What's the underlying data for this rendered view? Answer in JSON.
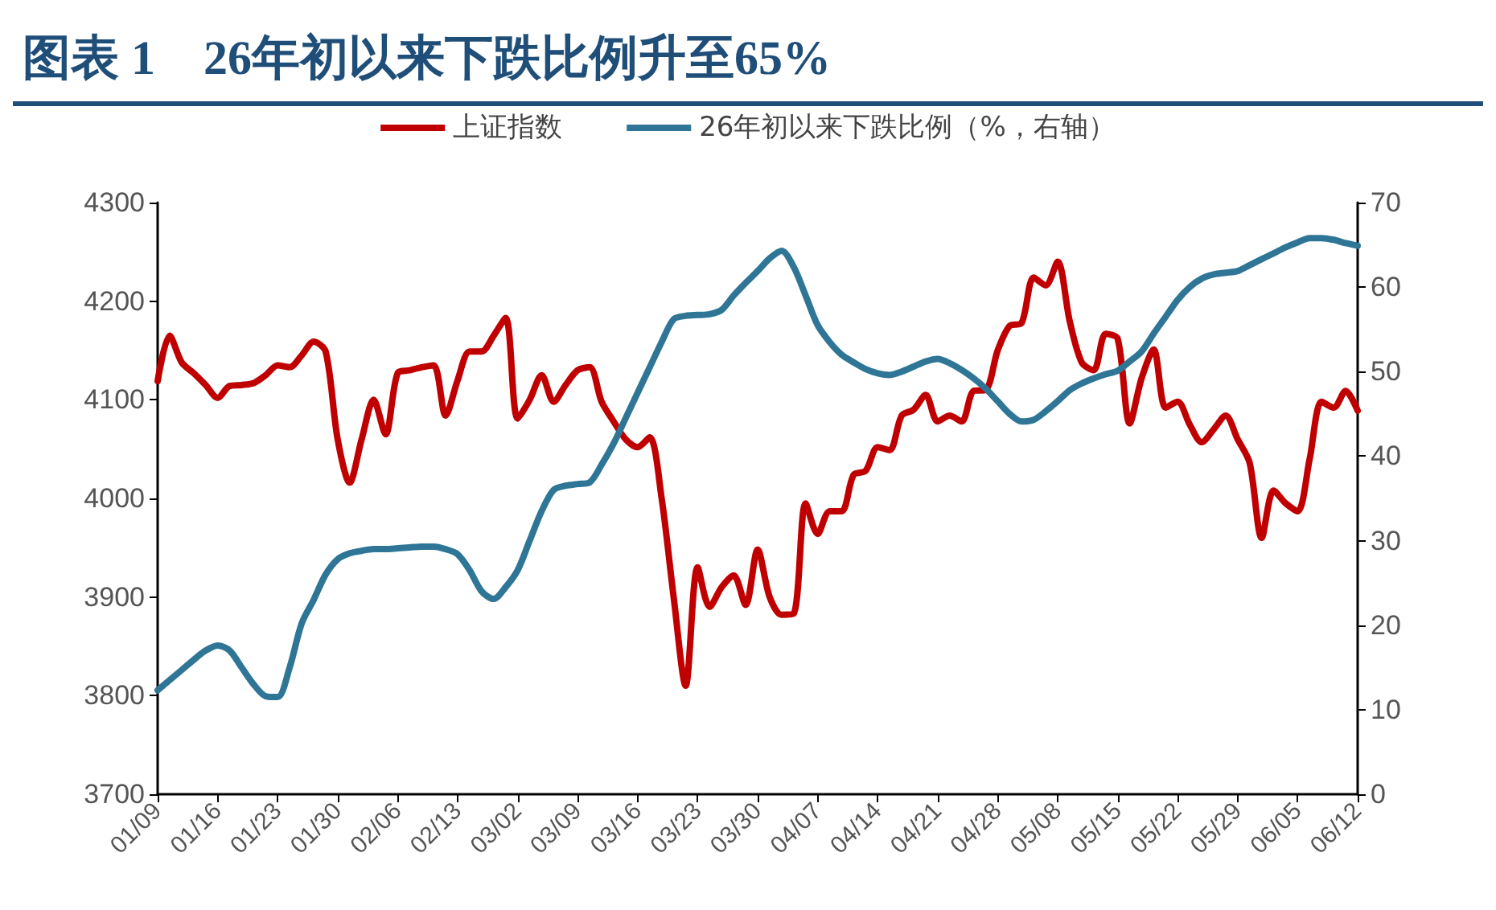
{
  "chart_data": {
    "type": "line",
    "title": "图表 1    26年初以来下跌比例升至65%",
    "categories": [
      "01/09",
      null,
      null,
      null,
      null,
      "01/16",
      null,
      null,
      null,
      null,
      "01/23",
      null,
      null,
      null,
      null,
      "01/30",
      null,
      null,
      null,
      null,
      "02/06",
      null,
      null,
      null,
      null,
      "02/13",
      null,
      null,
      null,
      null,
      "03/02",
      null,
      null,
      null,
      null,
      "03/09",
      null,
      null,
      null,
      null,
      "03/16",
      null,
      null,
      null,
      null,
      "03/23",
      null,
      null,
      null,
      null,
      "03/30",
      null,
      null,
      null,
      null,
      "04/07",
      null,
      null,
      null,
      null,
      "04/14",
      null,
      null,
      null,
      null,
      "04/21",
      null,
      null,
      null,
      null,
      "04/28",
      null,
      null,
      null,
      null,
      "05/08",
      null,
      null,
      null,
      null,
      "05/15",
      null,
      null,
      null,
      null,
      "05/22",
      null,
      null,
      null,
      null,
      "05/29",
      null,
      null,
      null,
      null,
      "06/05",
      null,
      null,
      null,
      null,
      "06/12"
    ],
    "ylim": [
      3700,
      4300
    ],
    "yticks": [
      3700,
      3800,
      3900,
      4000,
      4100,
      4200,
      4300
    ],
    "y2lim": [
      0,
      70
    ],
    "y2ticks": [
      0,
      10,
      20,
      30,
      40,
      50,
      60,
      70
    ],
    "legend": "top",
    "grid": false,
    "marker": "none",
    "line_style": "solid",
    "series": [
      {
        "name": "上证指数",
        "color": "#c00000",
        "values": [
          4119,
          4165,
          4138,
          4127,
          4115,
          4102,
          4114,
          4115,
          4117,
          4125,
          4135,
          4133,
          4145,
          4159,
          4149,
          4060,
          4016,
          4060,
          4100,
          4065,
          4127,
          4130,
          4133,
          4135,
          4084,
          4120,
          4149,
          4149,
          4165,
          4183,
          4081,
          4100,
          4125,
          4098,
          4115,
          4130,
          4133,
          4098,
          4078,
          4060,
          4052,
          4062,
          4000,
          3900,
          3810,
          3930,
          3890,
          3910,
          3922,
          3892,
          3948,
          3900,
          3882,
          3883,
          3995,
          3964,
          3987,
          3987,
          4024,
          4028,
          4052,
          4049,
          4084,
          4090,
          4105,
          4078,
          4084,
          4078,
          4109,
          4110,
          4150,
          4175,
          4178,
          4224,
          4216,
          4240,
          4180,
          4138,
          4130,
          4167,
          4162,
          4076,
          4122,
          4151,
          4092,
          4098,
          4075,
          4057,
          4070,
          4084,
          4060,
          4036,
          3960,
          4008,
          3995,
          3987,
          4040,
          4098,
          4092,
          4109,
          4089
        ]
      },
      {
        "name": "26年初以来下跌比例（%，右轴）",
        "color": "#2e7596",
        "axis": "y2",
        "values": [
          12.3,
          13.5,
          14.7,
          15.9,
          17,
          17.6,
          17,
          15,
          13,
          11.6,
          11.5,
          15,
          20.2,
          23,
          26,
          27.8,
          28.5,
          28.8,
          29,
          29,
          29.1,
          29.2,
          29.3,
          29.3,
          29,
          28.4,
          26.5,
          24,
          23.1,
          24.5,
          26.5,
          30,
          33.5,
          36,
          36.5,
          36.7,
          36.9,
          39,
          41.5,
          44.5,
          47.5,
          50.5,
          53.5,
          56.2,
          56.6,
          56.7,
          56.8,
          57.3,
          59,
          60.5,
          61.9,
          63.4,
          64.3,
          62.4,
          59,
          55.5,
          53.5,
          52,
          51.1,
          50.3,
          49.8,
          49.6,
          50,
          50.6,
          51.2,
          51.5,
          51,
          50.2,
          49.2,
          48,
          46.5,
          45,
          44.1,
          44.3,
          45.3,
          46.5,
          47.8,
          48.6,
          49.2,
          49.7,
          50.1,
          51.2,
          52.4,
          54.5,
          56.5,
          58.5,
          60,
          61,
          61.5,
          61.7,
          61.9,
          62.6,
          63.3,
          64,
          64.7,
          65.3,
          65.8,
          65.8,
          65.6,
          65.2,
          64.9
        ]
      }
    ]
  }
}
